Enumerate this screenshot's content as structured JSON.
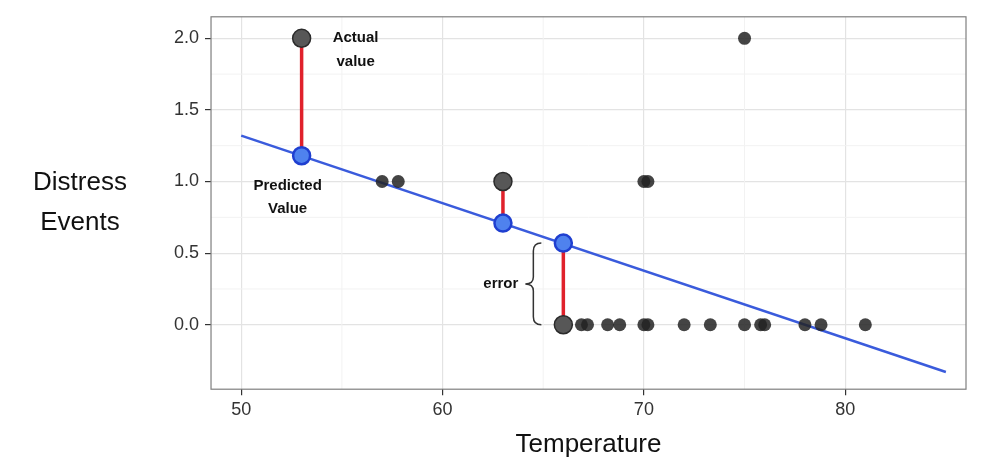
{
  "chart_data": {
    "type": "scatter",
    "x_label": "Temperature",
    "y_label": "Distress Events",
    "x": [
      57,
      57.8,
      70,
      70.2,
      75,
      66.9,
      67.2,
      68.2,
      68.8,
      70,
      70.2,
      72,
      73.3,
      75,
      75.8,
      76,
      78,
      78.8,
      81
    ],
    "values": [
      1,
      1,
      1,
      1,
      2,
      0,
      0,
      0,
      0,
      0,
      0,
      0,
      0,
      0,
      0,
      0,
      0,
      0,
      0
    ],
    "highlight": {
      "x": [
        53,
        63,
        66
      ],
      "actual": [
        2,
        1,
        0
      ],
      "predicted": [
        1.18,
        0.71,
        0.57
      ]
    },
    "fit": {
      "x": [
        50,
        85
      ],
      "values": [
        1.32,
        -0.33
      ]
    },
    "annotations": {
      "actual": "Actual value",
      "predicted": "Predicted Value",
      "error": "error"
    },
    "xlim": [
      48.5,
      86
    ],
    "xticks": [
      50,
      60,
      70,
      80
    ],
    "ylim": [
      -0.45,
      2.15
    ],
    "yticks": [
      {
        "value": 0,
        "label": "0.0"
      },
      {
        "value": 0.5,
        "label": "0.5"
      },
      {
        "value": 1,
        "label": "1.0"
      },
      {
        "value": 1.5,
        "label": "1.5"
      },
      {
        "value": 2,
        "label": "2.0"
      }
    ],
    "grid": true
  }
}
